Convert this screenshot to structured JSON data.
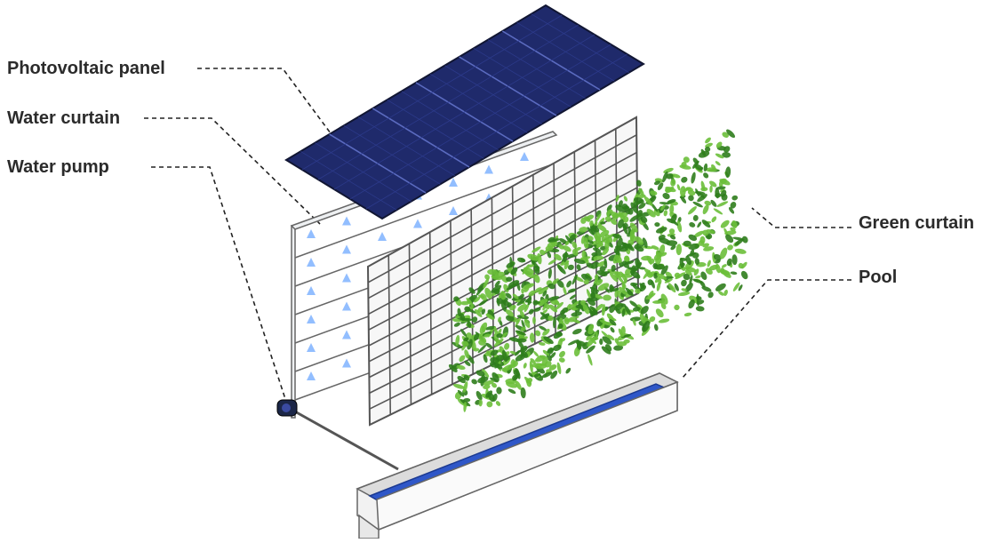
{
  "labels": {
    "photovoltaic_panel": "Photovoltaic panel",
    "water_curtain": "Water curtain",
    "water_pump": "Water pump",
    "green_curtain": "Green curtain",
    "pool": "Pool"
  },
  "colors": {
    "panel": "#1f2a6b",
    "panel_grid": "#3a4aa0",
    "frame": "#e9ecef",
    "frame_stroke": "#666666",
    "water": "#2f57c8",
    "pool_body": "#f4f4f4",
    "nozzle": "#7fb3ff",
    "foliage_dark": "#2f7d1c",
    "foliage_light": "#6cbf3a"
  },
  "icons": {
    "pump": "water-pump-icon",
    "nozzle": "spray-nozzle-icon"
  }
}
